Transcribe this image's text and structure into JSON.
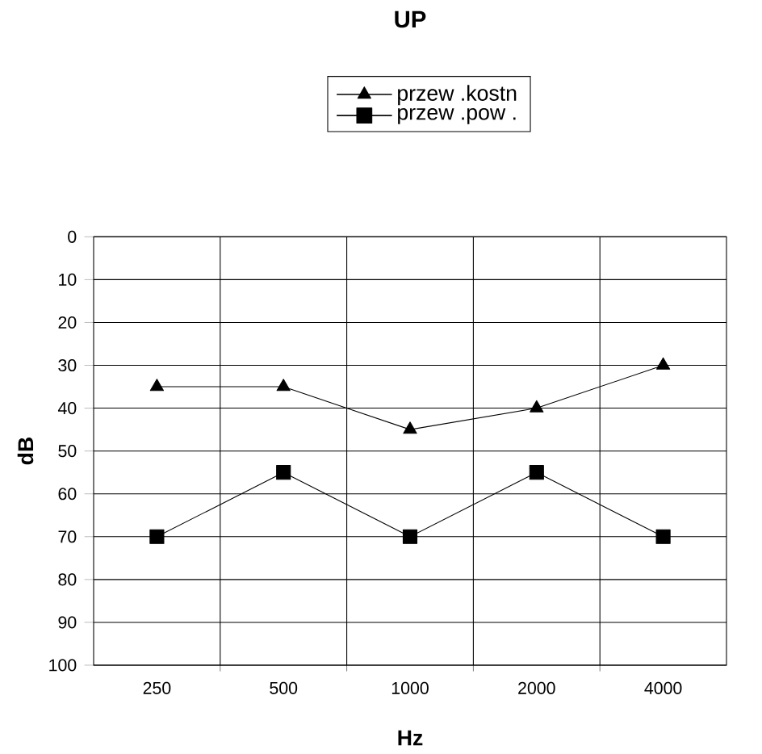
{
  "chart_data": {
    "type": "line",
    "title": "UP",
    "xlabel": "Hz",
    "ylabel": "dB",
    "categories": [
      "250",
      "500",
      "1000",
      "2000",
      "4000"
    ],
    "ylim": [
      100,
      0
    ],
    "yticks": [
      0,
      10,
      20,
      30,
      40,
      50,
      60,
      70,
      80,
      90,
      100
    ],
    "grid": true,
    "legend": "top",
    "series": [
      {
        "name": "przew .kostn",
        "color": "#000000",
        "marker": "triangle",
        "values": [
          35,
          35,
          45,
          40,
          30
        ]
      },
      {
        "name": "przew .pow .",
        "color": "#000000",
        "marker": "square",
        "values": [
          70,
          55,
          70,
          55,
          70
        ]
      }
    ]
  }
}
